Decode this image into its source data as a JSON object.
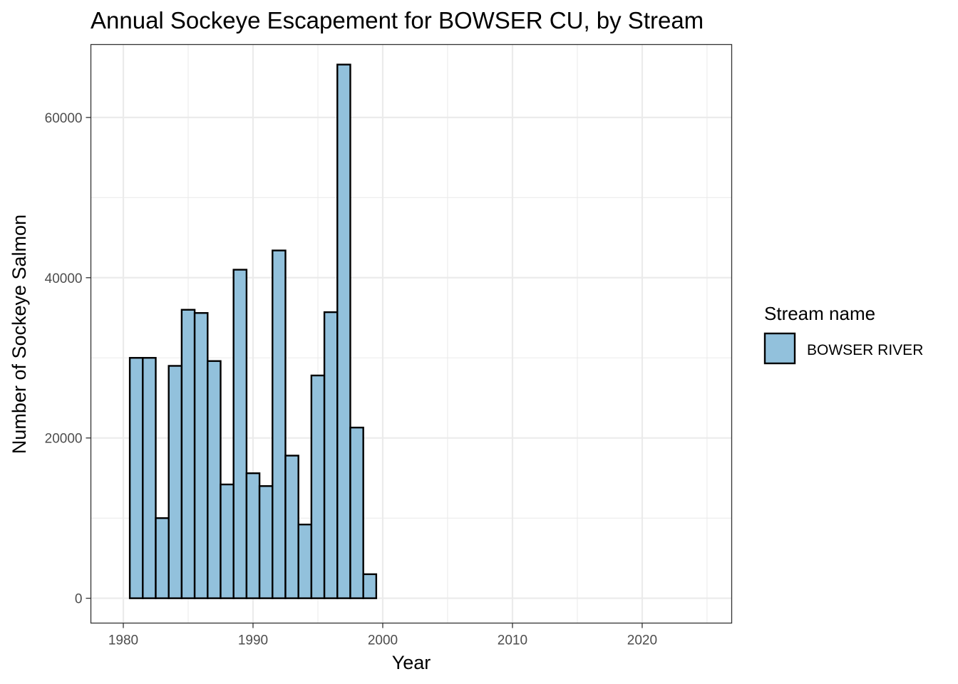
{
  "chart_data": {
    "type": "bar",
    "title": "Annual Sockeye Escapement for BOWSER CU, by Stream",
    "xlabel": "Year",
    "ylabel": "Number of Sockeye Salmon",
    "xlim": [
      1977.5,
      2026.9
    ],
    "ylim": [
      -3100,
      69100
    ],
    "x_ticks": [
      1980,
      1990,
      2000,
      2010,
      2020
    ],
    "y_ticks": [
      0,
      20000,
      40000,
      60000
    ],
    "grid": true,
    "legend": {
      "title": "Stream name",
      "position": "right"
    },
    "colors": {
      "fill": "#92c1dc",
      "stroke": "#000000",
      "grid": "#ebebeb",
      "panel_border": "#333333"
    },
    "series": [
      {
        "name": "BOWSER RIVER",
        "x": [
          1981,
          1982,
          1983,
          1984,
          1985,
          1986,
          1987,
          1988,
          1989,
          1990,
          1991,
          1992,
          1993,
          1994,
          1995,
          1996,
          1997,
          1998,
          1999
        ],
        "values": [
          30000,
          30000,
          10000,
          29000,
          36000,
          35600,
          29600,
          14200,
          41000,
          15600,
          14000,
          43400,
          17800,
          9200,
          27800,
          35700,
          66600,
          21300,
          3000
        ]
      }
    ]
  }
}
